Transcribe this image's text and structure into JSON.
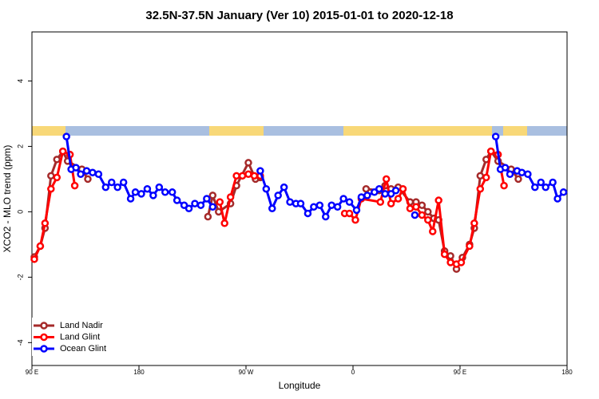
{
  "chart_data": {
    "type": "line",
    "title": "32.5N-37.5N January (Ver 10)   2015-01-01 to 2020-12-18",
    "x_label": "Longitude",
    "y_label": "XCO2 - MLO trend (ppm)",
    "xlim": [
      90,
      540
    ],
    "ylim": [
      -4.7,
      5.5
    ],
    "xticks": [
      {
        "value": 90,
        "label": "90 E"
      },
      180,
      {
        "value": 270,
        "label": "90 W"
      },
      {
        "value": 360,
        "label": "0"
      },
      {
        "value": 450,
        "label": "90 E"
      },
      {
        "value": 540,
        "label": "180"
      }
    ],
    "yticks": [
      -4,
      -2,
      0,
      2,
      4
    ],
    "legend": "bottom-left",
    "series": [
      {
        "name": "Land Nadir",
        "color": "#a52a2a",
        "x": [
          92,
          97,
          101,
          106,
          111,
          116,
          120,
          132,
          137,
          null,
          238,
          242,
          247,
          257,
          262,
          272,
          278,
          282,
          null,
          371,
          382,
          387,
          392,
          398,
          408,
          413,
          418,
          423,
          428,
          432,
          437,
          442,
          447,
          452,
          458,
          462,
          467,
          472,
          476,
          482,
          493,
          499
        ],
        "values": [
          -1.38,
          -1.05,
          -0.5,
          1.1,
          1.6,
          1.85,
          1.55,
          1.3,
          1.0,
          null,
          -0.15,
          0.5,
          0.0,
          0.25,
          0.8,
          1.5,
          1.0,
          1.05,
          null,
          0.7,
          0.65,
          0.8,
          0.7,
          0.75,
          0.3,
          0.3,
          0.2,
          0.0,
          -0.2,
          -0.25,
          -1.2,
          -1.35,
          -1.75,
          -1.4,
          -1.0,
          -0.5,
          1.1,
          1.6,
          1.85,
          1.55,
          1.3,
          1.0
        ]
      },
      {
        "name": "Land Glint",
        "color": "#ff0000",
        "x": [
          92,
          97,
          101,
          106,
          111,
          116,
          122,
          126,
          null,
          248,
          252,
          257,
          262,
          267,
          272,
          277,
          282,
          null,
          353,
          357,
          362,
          367,
          383,
          388,
          392,
          398,
          402,
          408,
          413,
          418,
          423,
          427,
          432,
          437,
          442,
          447,
          451,
          458,
          462,
          467,
          472,
          476,
          482,
          487
        ],
        "values": [
          -1.45,
          -1.05,
          -0.35,
          0.7,
          1.05,
          1.85,
          1.75,
          0.8,
          null,
          0.3,
          -0.35,
          0.45,
          1.1,
          1.1,
          1.15,
          1.1,
          1.1,
          null,
          -0.05,
          -0.05,
          -0.25,
          0.4,
          0.3,
          1.0,
          0.25,
          0.4,
          0.7,
          0.1,
          0.15,
          -0.1,
          -0.25,
          -0.6,
          0.35,
          -1.3,
          -1.55,
          -1.6,
          -1.55,
          -1.05,
          -0.35,
          0.7,
          1.05,
          1.85,
          1.75,
          0.8
        ]
      },
      {
        "name": "Ocean Glint",
        "color": "#0000ff",
        "x": [
          119,
          123,
          127,
          131,
          136,
          141,
          146,
          152,
          157,
          162,
          167,
          173,
          177,
          182,
          187,
          192,
          197,
          202,
          208,
          212,
          218,
          222,
          227,
          232,
          237,
          242,
          null,
          282,
          287,
          292,
          297,
          302,
          307,
          312,
          316,
          322,
          327,
          332,
          337,
          342,
          347,
          352,
          357,
          363,
          367,
          372,
          378,
          382,
          387,
          392,
          396,
          null,
          412,
          null,
          480,
          484,
          488,
          492,
          498,
          502,
          507,
          513,
          518,
          522,
          528,
          532,
          537
        ],
        "values": [
          2.3,
          1.3,
          1.35,
          1.15,
          1.25,
          1.2,
          1.15,
          0.75,
          0.9,
          0.75,
          0.9,
          0.4,
          0.6,
          0.55,
          0.7,
          0.5,
          0.75,
          0.6,
          0.6,
          0.35,
          0.2,
          0.1,
          0.25,
          0.2,
          0.4,
          0.15,
          null,
          1.25,
          0.7,
          0.1,
          0.5,
          0.75,
          0.3,
          0.25,
          0.25,
          -0.05,
          0.15,
          0.2,
          -0.15,
          0.2,
          0.15,
          0.4,
          0.3,
          0.05,
          0.45,
          0.5,
          0.6,
          0.7,
          0.55,
          0.55,
          0.65,
          null,
          -0.1,
          null,
          2.3,
          1.3,
          1.35,
          1.15,
          1.25,
          1.2,
          1.15,
          0.75,
          0.9,
          0.75,
          0.9,
          0.4,
          0.6
        ]
      }
    ]
  }
}
